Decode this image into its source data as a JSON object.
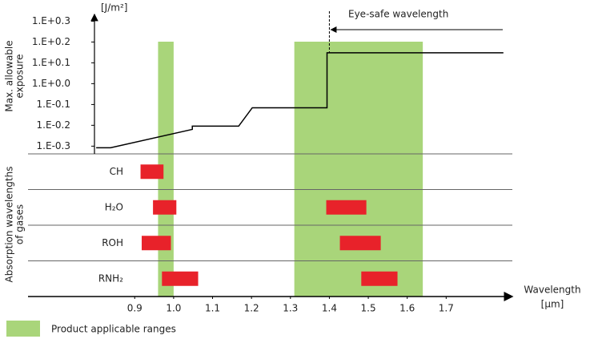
{
  "chart_data": {
    "type": "line",
    "y_label": [
      "Max. allowable",
      "exposure"
    ],
    "y_unit": "[J/m²]",
    "x_label": "Wavelength",
    "x_unit": "[μm]",
    "xlim": [
      0.626,
      1.87
    ],
    "xticks": [
      0.9,
      {
        "value": 1,
        "label": "1.0"
      },
      1.1,
      1.2,
      1.3,
      1.4,
      1.5,
      1.6,
      1.7
    ],
    "log_y": true,
    "ylim": [
      0.46,
      2.15
    ],
    "yticks": [
      {
        "value": 0.501,
        "label": "1.E-0.3"
      },
      {
        "value": 0.631,
        "label": "1.E-0.2"
      },
      {
        "value": 0.794,
        "label": "1.E-0.1"
      },
      {
        "value": 1,
        "label": "1.E+0.0"
      },
      {
        "value": 1.259,
        "label": "1.E+0.1"
      },
      {
        "value": 1.585,
        "label": "1.E+0.2"
      },
      {
        "value": 1.995,
        "label": "1.E+0.3"
      }
    ],
    "color": "#000000",
    "x": [
      0.801,
      0.838,
      1.048,
      1.048,
      1.167,
      1.202,
      1.394,
      1.394,
      1.847
    ],
    "values": [
      0.492,
      0.492,
      0.603,
      0.625,
      0.625,
      0.766,
      0.766,
      1.406,
      1.406
    ],
    "ranges": {
      "name": "Product applicable ranges",
      "color": "#a9d57a",
      "spans": [
        [
          0.96,
          1.0
        ],
        [
          1.31,
          1.64
        ]
      ]
    },
    "annotation": {
      "text": "Eye-safe wavelength",
      "x": 1.4
    },
    "gases": {
      "title": [
        "Absorption wavelengths",
        "of gases"
      ],
      "color": "#e8222a",
      "rows": [
        {
          "name": "CH",
          "spans": [
            [
              0.915,
              0.974
            ]
          ]
        },
        {
          "name": "H₂O",
          "spans": [
            [
              0.947,
              1.007
            ],
            [
              1.392,
              1.495
            ]
          ]
        },
        {
          "name": "ROH",
          "spans": [
            [
              0.918,
              0.993
            ],
            [
              1.427,
              1.532
            ]
          ]
        },
        {
          "name": "RNH₂",
          "spans": [
            [
              0.97,
              1.063
            ],
            [
              1.482,
              1.575
            ]
          ]
        }
      ]
    }
  }
}
